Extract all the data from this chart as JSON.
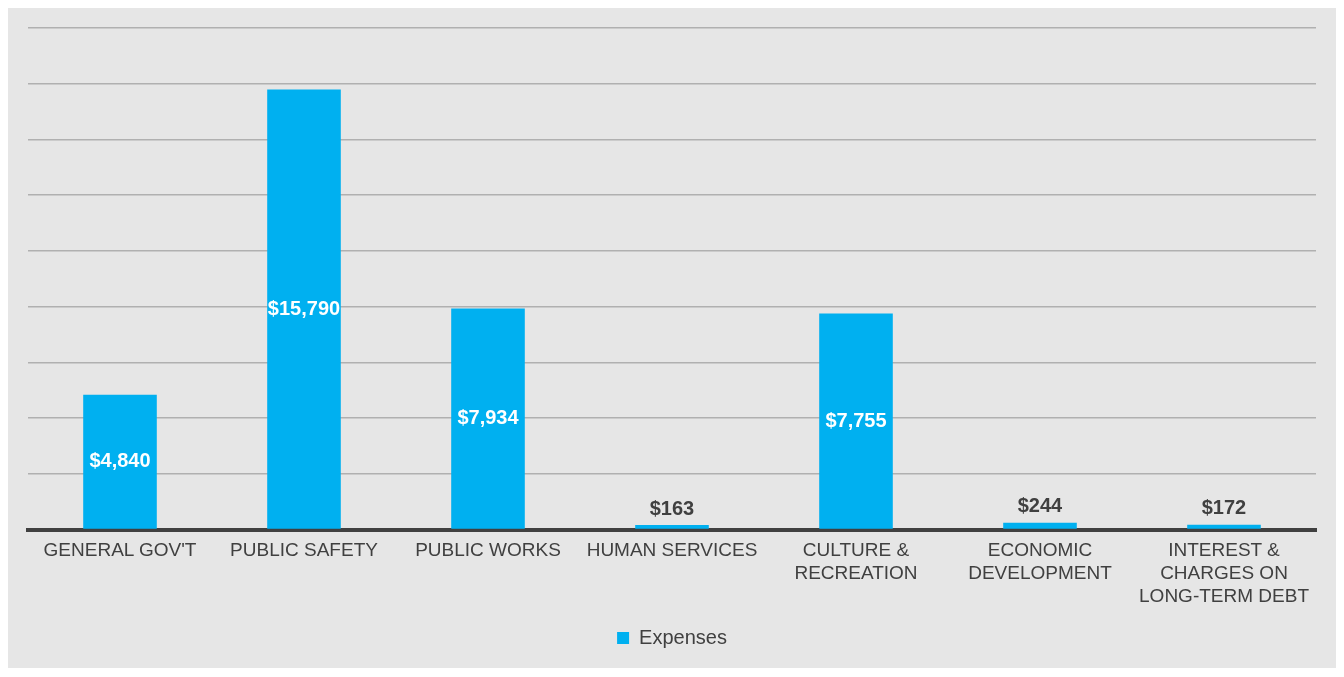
{
  "chart_data": {
    "type": "bar",
    "categories": [
      "GENERAL GOV'T",
      "PUBLIC SAFETY",
      "PUBLIC WORKS",
      "HUMAN SERVICES",
      "CULTURE & RECREATION",
      "ECONOMIC DEVELOPMENT",
      "INTEREST & CHARGES ON LONG-TERM DEBT"
    ],
    "series": [
      {
        "name": "Expenses",
        "color": "#00b0f0",
        "values": [
          4840,
          15790,
          7934,
          163,
          7755,
          244,
          172
        ],
        "value_labels": [
          "$4,840",
          "$15,790",
          "$7,934",
          "$163",
          "$7,755",
          "$244",
          "$172"
        ]
      }
    ],
    "ylim": [
      0,
      18000
    ],
    "yticks": [
      {
        "value": 0,
        "label": null
      },
      {
        "value": 2000,
        "label": null
      },
      {
        "value": 4000,
        "label": null
      },
      {
        "value": 6000,
        "label": null
      },
      {
        "value": 8000,
        "label": null
      },
      {
        "value": 10000,
        "label": null
      },
      {
        "value": 12000,
        "label": null
      },
      {
        "value": 14000,
        "label": null
      },
      {
        "value": 16000,
        "label": null
      },
      {
        "value": 18000,
        "label": null
      }
    ],
    "grid": "y",
    "legend": "bottom",
    "tick_labels": "x"
  }
}
